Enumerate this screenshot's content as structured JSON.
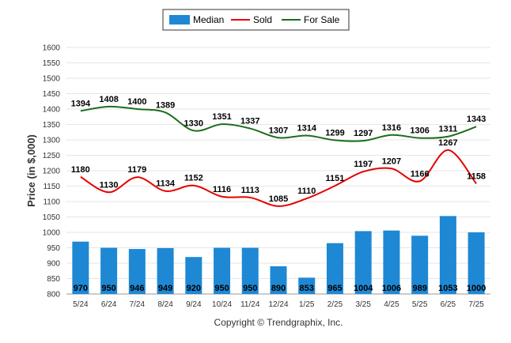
{
  "chart_data": {
    "type": "bar",
    "categories": [
      "5/24",
      "6/24",
      "7/24",
      "8/24",
      "9/24",
      "10/24",
      "11/24",
      "12/24",
      "1/25",
      "2/25",
      "3/25",
      "4/25",
      "5/25",
      "6/25",
      "7/25"
    ],
    "ylabel": "Price (in $,000)",
    "ylim": [
      800,
      1600
    ],
    "yticks": [
      800,
      850,
      900,
      950,
      1000,
      1050,
      1100,
      1150,
      1200,
      1250,
      1300,
      1350,
      1400,
      1450,
      1500,
      1550,
      1600
    ],
    "grid": true,
    "legend_position": "top-center",
    "series": [
      {
        "name": "Median",
        "type": "bar",
        "color": "#1e88d4",
        "values": [
          970,
          950,
          946,
          949,
          920,
          950,
          950,
          890,
          853,
          965,
          1004,
          1006,
          989,
          1053,
          1000
        ]
      },
      {
        "name": "Sold",
        "type": "line",
        "color": "#e60000",
        "values": [
          1180,
          1130,
          1179,
          1134,
          1152,
          1116,
          1113,
          1085,
          1110,
          1151,
          1197,
          1207,
          1166,
          1267,
          1158
        ]
      },
      {
        "name": "For Sale",
        "type": "line",
        "color": "#1b6e1b",
        "values": [
          1394,
          1408,
          1400,
          1389,
          1330,
          1351,
          1337,
          1307,
          1314,
          1299,
          1297,
          1316,
          1306,
          1311,
          1343
        ]
      }
    ],
    "copyright": "Copyright © Trendgraphix, Inc."
  }
}
